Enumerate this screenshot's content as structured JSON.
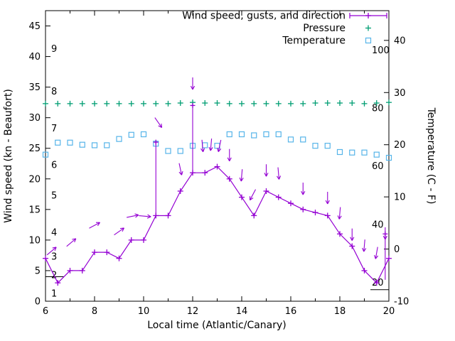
{
  "chart_data": {
    "type": "line",
    "title": "",
    "xlabel": "Local time (Atlantic/Canary)",
    "ylabel_left": "Wind speed (kn - Beaufort)",
    "ylabel_right": "Temperature (C - F)",
    "xlim": [
      6,
      20
    ],
    "ylim_left": [
      0,
      47.5
    ],
    "ylim_right": [
      -10,
      45.7
    ],
    "x_ticks": [
      6,
      8,
      10,
      12,
      14,
      16,
      18,
      20
    ],
    "x_minor_ticks": [
      7,
      9,
      11,
      13,
      15,
      17,
      19
    ],
    "y_ticks_left": [
      0,
      5,
      10,
      15,
      20,
      25,
      30,
      35,
      40,
      45
    ],
    "y_ticks_right": [
      -10,
      0,
      10,
      20,
      30,
      40
    ],
    "grid": false,
    "legend_position": "top-right",
    "beaufort_scale_labels": [
      {
        "label": "1",
        "kn": 1
      },
      {
        "label": "2",
        "kn": 4
      },
      {
        "label": "3",
        "kn": 7
      },
      {
        "label": "4",
        "kn": 11
      },
      {
        "label": "5",
        "kn": 17
      },
      {
        "label": "6",
        "kn": 22
      },
      {
        "label": "7",
        "kn": 28
      },
      {
        "label": "8",
        "kn": 34
      },
      {
        "label": "9",
        "kn": 41
      }
    ],
    "fahrenheit_scale_labels": [
      {
        "label": "20",
        "c": -6.7
      },
      {
        "label": "40",
        "c": 4.4
      },
      {
        "label": "60",
        "c": 15.6
      },
      {
        "label": "80",
        "c": 26.7
      },
      {
        "label": "100",
        "c": 37.8
      }
    ],
    "x": [
      6,
      6.5,
      7,
      7.5,
      8,
      8.5,
      9,
      9.5,
      10,
      10.5,
      11,
      11.5,
      12,
      12.5,
      13,
      13.5,
      14,
      14.5,
      15,
      15.5,
      16,
      16.5,
      17,
      17.5,
      18,
      18.5,
      19,
      19.5,
      20
    ],
    "series": [
      {
        "name": "Wind speed, gusts, and direction",
        "type": "line-with-plus-markers",
        "axis": "left",
        "unit": "kn",
        "color": "#9400d3",
        "values": [
          7,
          3,
          5,
          5,
          8,
          8,
          7,
          10,
          10,
          14,
          14,
          18,
          21,
          21,
          22,
          20,
          17,
          14,
          18,
          17,
          16,
          15,
          14.5,
          14,
          11,
          9,
          5,
          3,
          7
        ]
      },
      {
        "name": "Pressure",
        "type": "plus-markers",
        "axis": "left-display",
        "color": "#009e73",
        "values": [
          32.3,
          32.3,
          32.3,
          32.3,
          32.3,
          32.3,
          32.3,
          32.3,
          32.3,
          32.3,
          32.3,
          32.4,
          32.5,
          32.4,
          32.4,
          32.3,
          32.3,
          32.3,
          32.3,
          32.3,
          32.3,
          32.3,
          32.4,
          32.4,
          32.4,
          32.4,
          32.3,
          32.4,
          32.5
        ]
      },
      {
        "name": "Temperature",
        "type": "open-square-markers",
        "axis": "right",
        "unit": "C",
        "color": "#56b4e9",
        "values": [
          18.1,
          20.4,
          20.4,
          20,
          19.9,
          19.9,
          21.1,
          21.9,
          22,
          20.2,
          18.8,
          18.8,
          19.8,
          19.9,
          19.8,
          22,
          22,
          21.8,
          22,
          22,
          21,
          21,
          19.8,
          19.8,
          18.6,
          18.5,
          18.5,
          18.1,
          17.5
        ]
      }
    ],
    "gusts": [
      {
        "x": 10.5,
        "wind": 14,
        "gust": 26
      },
      {
        "x": 12,
        "wind": 21,
        "gust": 32
      },
      {
        "x": 19.85,
        "wind": 3.5,
        "gust": 11
      }
    ],
    "wind_direction_arrows": [
      {
        "x": 6.25,
        "y": 8.2,
        "angle": 40
      },
      {
        "x": 7.05,
        "y": 9.6,
        "angle": 40
      },
      {
        "x": 8.0,
        "y": 12.4,
        "angle": 28
      },
      {
        "x": 9.0,
        "y": 11.4,
        "angle": 35
      },
      {
        "x": 9.55,
        "y": 13.9,
        "angle": 12
      },
      {
        "x": 10.05,
        "y": 13.9,
        "angle": -5
      },
      {
        "x": 10.6,
        "y": 29.2,
        "angle": -55
      },
      {
        "x": 11.5,
        "y": 21.6,
        "angle": -78
      },
      {
        "x": 12.0,
        "y": 35.6,
        "angle": -90
      },
      {
        "x": 12.4,
        "y": 25.4,
        "angle": -85
      },
      {
        "x": 12.75,
        "y": 25.6,
        "angle": -95
      },
      {
        "x": 13.1,
        "y": 25.4,
        "angle": -102
      },
      {
        "x": 13.5,
        "y": 23.9,
        "angle": -90
      },
      {
        "x": 14.0,
        "y": 20.6,
        "angle": -95
      },
      {
        "x": 14.45,
        "y": 17.4,
        "angle": -118
      },
      {
        "x": 15.0,
        "y": 21.4,
        "angle": -90
      },
      {
        "x": 15.5,
        "y": 20.9,
        "angle": -85
      },
      {
        "x": 16.5,
        "y": 18.4,
        "angle": -90
      },
      {
        "x": 17.5,
        "y": 16.9,
        "angle": -90
      },
      {
        "x": 18.0,
        "y": 14.4,
        "angle": -95
      },
      {
        "x": 18.5,
        "y": 10.9,
        "angle": -90
      },
      {
        "x": 19.0,
        "y": 9.1,
        "angle": -95
      },
      {
        "x": 19.5,
        "y": 7.9,
        "angle": -100
      },
      {
        "x": 19.85,
        "y": 11.1,
        "angle": -90
      }
    ]
  },
  "legend": {
    "position": "top-right",
    "items": [
      {
        "label": "Wind speed, gusts, and direction",
        "color": "#9400d3",
        "marker": "errorbar-line-plus"
      },
      {
        "label": "Pressure",
        "color": "#009e73",
        "marker": "plus"
      },
      {
        "label": "Temperature",
        "color": "#56b4e9",
        "marker": "open-square"
      }
    ]
  },
  "colors": {
    "wind": "#9400d3",
    "pressure": "#009e73",
    "temperature": "#56b4e9",
    "axis": "#000000",
    "background": "#ffffff"
  }
}
